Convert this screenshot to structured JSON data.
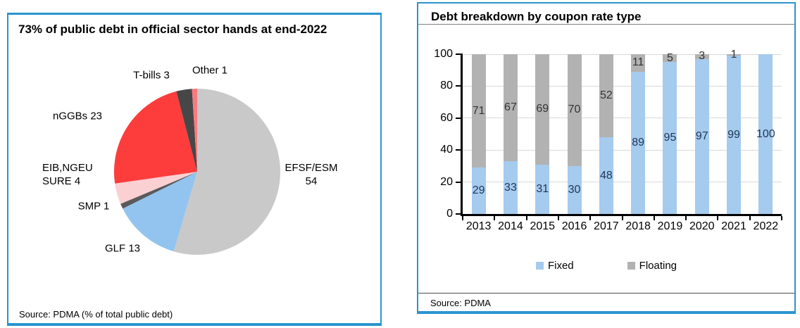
{
  "chart_data": [
    {
      "type": "pie",
      "title": "73% of public debt in official sector hands at end-2022",
      "source": "Source: PDMA (% of total public debt)",
      "unit": "% of total public debt",
      "direction": "clockwise",
      "start_angle_deg": 0,
      "segments": [
        {
          "label": "EFSF/ESM",
          "value": 54,
          "color": "#c9c9c9",
          "label_lines": [
            "EFSF/ESM",
            "54"
          ]
        },
        {
          "label": "GLF",
          "value": 13,
          "color": "#93c4ef",
          "label_lines": [
            "GLF 13"
          ]
        },
        {
          "label": "SMP",
          "value": 1,
          "color": "#5a5a5a",
          "label_lines": [
            "SMP 1"
          ]
        },
        {
          "label": "EIB,NGEU SURE",
          "value": 4,
          "color": "#fbd0d3",
          "label_lines": [
            "EIB,NGEU",
            "SURE 4"
          ]
        },
        {
          "label": "nGGBs",
          "value": 23,
          "color": "#fd3c3c",
          "label_lines": [
            "nGGBs 23"
          ]
        },
        {
          "label": "T-bills",
          "value": 3,
          "color": "#474747",
          "label_lines": [
            "T-bills 3"
          ]
        },
        {
          "label": "Other",
          "value": 1,
          "color": "#f8797f",
          "label_lines": [
            "Other 1"
          ]
        }
      ]
    },
    {
      "type": "bar",
      "stacked": true,
      "title": "Debt breakdown by coupon rate type",
      "source": "Source: PDMA",
      "categories": [
        "2013",
        "2014",
        "2015",
        "2016",
        "2017",
        "2018",
        "2019",
        "2020",
        "2021",
        "2022"
      ],
      "series": [
        {
          "name": "Fixed",
          "color": "#a5cbee",
          "label_color": "#1f3655",
          "values": [
            29,
            33,
            31,
            30,
            48,
            89,
            95,
            97,
            99,
            100
          ]
        },
        {
          "name": "Floating",
          "color": "#b2b2b2",
          "label_color": "#333333",
          "values": [
            71,
            67,
            69,
            70,
            52,
            11,
            5,
            3,
            1,
            0
          ]
        }
      ],
      "ylim": [
        0,
        100
      ],
      "yticks": [
        0,
        20,
        40,
        60,
        80,
        100
      ],
      "grid": true,
      "legend_position": "bottom"
    }
  ],
  "accent_border_color": "#2a94cf"
}
